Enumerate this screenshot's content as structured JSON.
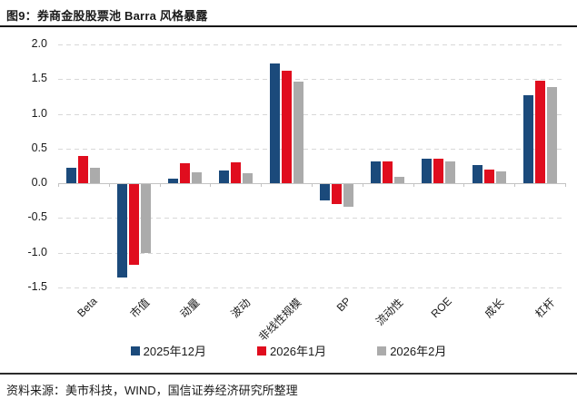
{
  "header": {
    "title": "图9：券商金股股票池 Barra 风格暴露"
  },
  "footer": {
    "source": "资料来源：美市科技，WIND，国信证券经济研究所整理"
  },
  "colors": {
    "series_navy": "#1B4A7B",
    "series_red": "#E00D1E",
    "series_gray": "#ABABAB",
    "gridline": "#D8D8D8",
    "axis": "#C3C3C3",
    "text": "#1A1A1A"
  },
  "chart_data": {
    "type": "bar",
    "title": "券商金股股票池 Barra 风格暴露",
    "categories": [
      "Beta",
      "市值",
      "动量",
      "波动",
      "非线性规模",
      "BP",
      "流动性",
      "ROE",
      "成长",
      "杠杆"
    ],
    "series": [
      {
        "name": "2025年12月",
        "color": "#1B4A7B",
        "values": [
          0.23,
          -1.34,
          0.07,
          0.18,
          1.73,
          -0.24,
          0.32,
          0.35,
          0.27,
          1.27
        ]
      },
      {
        "name": "2026年1月",
        "color": "#E00D1E",
        "values": [
          0.4,
          -1.16,
          0.29,
          0.3,
          1.62,
          -0.29,
          0.31,
          0.36,
          0.2,
          1.48
        ]
      },
      {
        "name": "2026年2月",
        "color": "#ABABAB",
        "values": [
          0.22,
          -0.99,
          0.16,
          0.14,
          1.46,
          -0.32,
          0.1,
          0.32,
          0.17,
          1.39
        ]
      }
    ],
    "ylim": [
      -1.5,
      2.0
    ],
    "yticks": [
      2.0,
      1.5,
      1.0,
      0.5,
      0.0,
      -0.5,
      -1.0,
      -1.5
    ],
    "xlabel": "",
    "ylabel": "",
    "grid": "horizontal-dashed",
    "legend_position": "bottom"
  }
}
